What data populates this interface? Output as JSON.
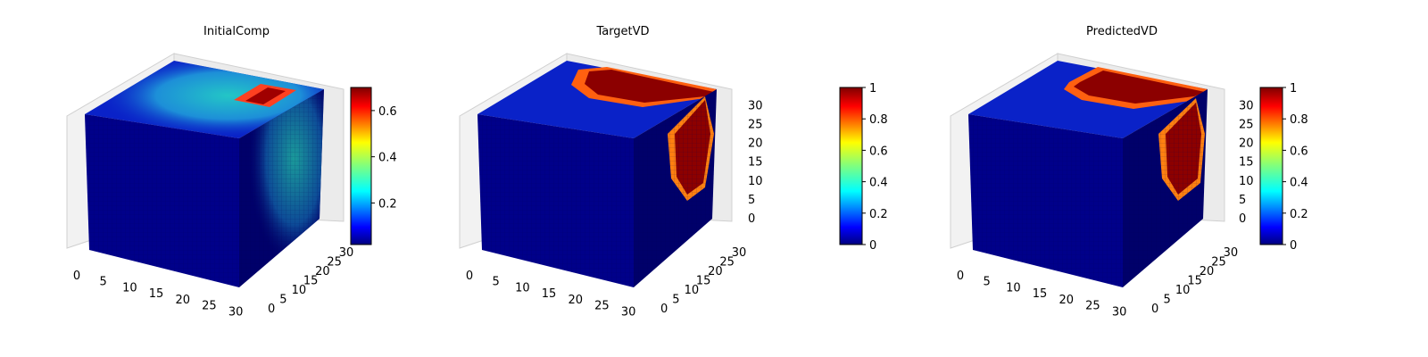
{
  "chart_data": [
    {
      "type": "heatmap",
      "title": "InitialComp",
      "x": {
        "lim": [
          0,
          32
        ],
        "ticks": [
          0,
          5,
          10,
          15,
          20,
          25,
          30
        ]
      },
      "y": {
        "lim": [
          0,
          32
        ],
        "ticks": [
          0,
          5,
          10,
          15,
          20,
          25,
          30
        ]
      },
      "z": {
        "lim": [
          0,
          32
        ],
        "ticks": []
      },
      "colorbar": {
        "colormap": "jet",
        "range": [
          0.02,
          0.7
        ],
        "ticks": [
          0.2,
          0.4,
          0.6
        ]
      },
      "description_values": {
        "background": 0.05,
        "top_highlight_max": 0.7,
        "teal_region": 0.33
      }
    },
    {
      "type": "heatmap",
      "title": "TargetVD",
      "x": {
        "lim": [
          0,
          32
        ],
        "ticks": [
          0,
          5,
          10,
          15,
          20,
          25,
          30
        ]
      },
      "y": {
        "lim": [
          0,
          32
        ],
        "ticks": [
          0,
          5,
          10,
          15,
          20,
          25,
          30
        ]
      },
      "z": {
        "lim": [
          0,
          32
        ],
        "ticks": [
          0,
          5,
          10,
          15,
          20,
          25,
          30
        ]
      },
      "colorbar": {
        "colormap": "jet",
        "range": [
          0.0,
          1.0
        ],
        "ticks": [
          0.0,
          0.2,
          0.4,
          0.6,
          0.8,
          1.0
        ]
      },
      "description_values": {
        "background": 0.0,
        "filled_region": 1.0
      }
    },
    {
      "type": "heatmap",
      "title": "PredictedVD",
      "x": {
        "lim": [
          0,
          32
        ],
        "ticks": [
          0,
          5,
          10,
          15,
          20,
          25,
          30
        ]
      },
      "y": {
        "lim": [
          0,
          32
        ],
        "ticks": [
          0,
          5,
          10,
          15,
          20,
          25,
          30
        ]
      },
      "z": {
        "lim": [
          0,
          32
        ],
        "ticks": [
          0,
          5,
          10,
          15,
          20,
          25,
          30
        ]
      },
      "colorbar": {
        "colormap": "jet",
        "range": [
          0.0,
          1.0
        ],
        "ticks": [
          0.0,
          0.2,
          0.4,
          0.6,
          0.8,
          1.0
        ]
      },
      "description_values": {
        "background": 0.0,
        "filled_region": 1.0
      }
    }
  ],
  "colors": {
    "jet_stops": [
      "#00007f",
      "#0000ff",
      "#007fff",
      "#00ffff",
      "#7fff7f",
      "#ffff00",
      "#ff7f00",
      "#ff0000",
      "#7f0000"
    ],
    "cube_front": "#00008a",
    "cube_right": "#00006a",
    "cube_top": "#0a22c8",
    "pane": "#f2f2f2",
    "grid": "#d9d9d9"
  }
}
